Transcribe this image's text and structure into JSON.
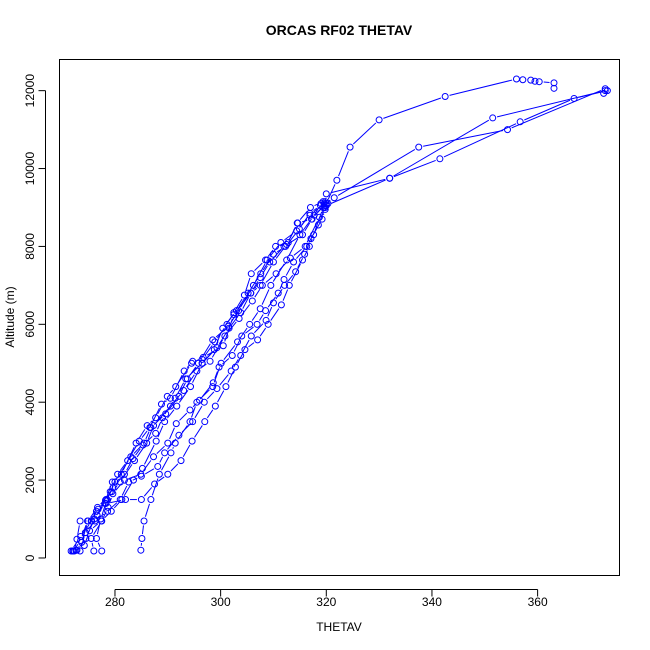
{
  "chart_data": {
    "type": "line",
    "title": "ORCAS RF02 THETAV",
    "xlabel": "THETAV",
    "ylabel": "Altitude (m)",
    "xlim": [
      269.5,
      375.5
    ],
    "ylim": [
      -450,
      12800
    ],
    "xticks": [
      280,
      300,
      320,
      340,
      360
    ],
    "yticks": [
      0,
      2000,
      4000,
      6000,
      8000,
      10000,
      12000
    ],
    "xtick_labels": [
      "280",
      "300",
      "320",
      "340",
      "360"
    ],
    "ytick_labels": [
      "0",
      "2000",
      "4000",
      "6000",
      "8000",
      "10000",
      "12000"
    ],
    "marker": "open-circle",
    "line_style": "solid-with-gaps-at-markers",
    "color": "#0000FF",
    "series": [
      {
        "points": [
          [
            284.9,
            200
          ],
          [
            285.1,
            500
          ],
          [
            285.5,
            950
          ],
          [
            286.8,
            1500
          ],
          [
            288.4,
            2150
          ],
          [
            290.6,
            2700
          ],
          [
            291.4,
            2950
          ],
          [
            294.2,
            3500
          ],
          [
            295.5,
            4000
          ],
          [
            298.5,
            4400
          ],
          [
            300.1,
            5000
          ],
          [
            303.2,
            5550
          ],
          [
            305.5,
            6000
          ],
          [
            307.5,
            6400
          ],
          [
            309.5,
            7000
          ],
          [
            312.5,
            7650
          ],
          [
            315.0,
            8300
          ],
          [
            317.7,
            8800
          ],
          [
            320.0,
            9100
          ],
          [
            322.0,
            9700
          ],
          [
            324.5,
            10550
          ],
          [
            330.0,
            11250
          ],
          [
            342.5,
            11850
          ],
          [
            356.0,
            12300
          ],
          [
            357.2,
            12280
          ],
          [
            358.7,
            12270
          ],
          [
            359.5,
            12240
          ],
          [
            360.3,
            12230
          ],
          [
            363.1,
            12200
          ],
          [
            363.1,
            12060
          ]
        ]
      },
      {
        "points": [
          [
            272.3,
            180
          ],
          [
            272.8,
            480
          ],
          [
            273.4,
            950
          ],
          [
            275.5,
            950
          ],
          [
            276.8,
            1250
          ],
          [
            278.2,
            1480
          ],
          [
            279.5,
            1950
          ],
          [
            281.2,
            2150
          ],
          [
            284.0,
            2950
          ],
          [
            286.1,
            3400
          ],
          [
            287.7,
            3600
          ],
          [
            289.9,
            4150
          ],
          [
            291.5,
            4400
          ],
          [
            294.5,
            5000
          ],
          [
            296.7,
            5150
          ],
          [
            300.5,
            5450
          ],
          [
            302.5,
            6250
          ],
          [
            305.7,
            6800
          ],
          [
            307.5,
            7000
          ],
          [
            310.0,
            7600
          ],
          [
            312.5,
            8050
          ],
          [
            314.6,
            8600
          ],
          [
            317.2,
            8700
          ],
          [
            319.6,
            9050
          ],
          [
            320.0,
            9350
          ],
          [
            332.0,
            9750
          ],
          [
            351.5,
            11300
          ],
          [
            372.8,
            12000
          ],
          [
            372.5,
            11930
          ]
        ]
      },
      {
        "points": [
          [
            277.5,
            180
          ],
          [
            276.5,
            500
          ],
          [
            277.3,
            1000
          ],
          [
            278.5,
            1500
          ],
          [
            280.0,
            1950
          ],
          [
            283.0,
            2600
          ],
          [
            285.5,
            2950
          ],
          [
            286.8,
            3350
          ],
          [
            289.6,
            3700
          ],
          [
            292.1,
            4150
          ],
          [
            293.7,
            4600
          ],
          [
            295.8,
            5000
          ],
          [
            298.5,
            5600
          ],
          [
            301.5,
            5950
          ],
          [
            303.4,
            6350
          ],
          [
            306.2,
            7000
          ],
          [
            308.8,
            7650
          ],
          [
            311.4,
            8100
          ],
          [
            314.4,
            8400
          ],
          [
            316.9,
            8800
          ],
          [
            319.6,
            9100
          ],
          [
            321.5,
            9250
          ],
          [
            337.5,
            10550
          ],
          [
            354.3,
            11000
          ],
          [
            372.8,
            12050
          ]
        ]
      },
      {
        "points": [
          [
            272.6,
            200
          ],
          [
            273.7,
            400
          ],
          [
            274.9,
            950
          ],
          [
            276.7,
            1300
          ],
          [
            279.4,
            1700
          ],
          [
            281.0,
            1950
          ],
          [
            283.7,
            2500
          ],
          [
            286.0,
            2950
          ],
          [
            287.3,
            3400
          ],
          [
            290.5,
            3900
          ],
          [
            293.0,
            4300
          ],
          [
            295.5,
            4800
          ],
          [
            298.0,
            5050
          ],
          [
            300.8,
            5700
          ],
          [
            303.5,
            6150
          ],
          [
            306.0,
            6600
          ],
          [
            307.9,
            7000
          ],
          [
            310.5,
            7300
          ],
          [
            313.2,
            7700
          ],
          [
            316.0,
            8000
          ],
          [
            318.7,
            8750
          ],
          [
            320.0,
            9050
          ],
          [
            332.0,
            9750
          ],
          [
            341.5,
            10250
          ],
          [
            356.7,
            11200
          ],
          [
            366.9,
            11800
          ],
          [
            373.2,
            12000
          ]
        ]
      },
      {
        "points": [
          [
            271.7,
            180
          ],
          [
            273.5,
            550
          ],
          [
            275.6,
            950
          ],
          [
            276.5,
            1200
          ],
          [
            278.3,
            1400
          ],
          [
            282.0,
            1500
          ],
          [
            285.0,
            1500
          ],
          [
            287.5,
            1900
          ],
          [
            290.0,
            2150
          ],
          [
            292.5,
            2500
          ],
          [
            294.6,
            3000
          ],
          [
            297.0,
            3500
          ],
          [
            299.0,
            3900
          ],
          [
            301.0,
            4400
          ],
          [
            302.8,
            4900
          ],
          [
            304.6,
            5350
          ],
          [
            307.0,
            5600
          ],
          [
            309.0,
            6000
          ],
          [
            311.5,
            6500
          ],
          [
            313.0,
            7000
          ],
          [
            315.5,
            7650
          ],
          [
            316.8,
            8000
          ],
          [
            317.6,
            8300
          ],
          [
            319.4,
            9000
          ],
          [
            319.8,
            9150
          ]
        ]
      },
      {
        "points": [
          [
            272.0,
            180
          ],
          [
            274.2,
            320
          ],
          [
            275.2,
            700
          ],
          [
            277.4,
            950
          ],
          [
            279.3,
            1200
          ],
          [
            281.3,
            1500
          ],
          [
            283.5,
            2000
          ],
          [
            285.2,
            2300
          ],
          [
            287.8,
            3000
          ],
          [
            289.4,
            3500
          ],
          [
            291.7,
            3900
          ],
          [
            294.3,
            4400
          ],
          [
            296.5,
            5000
          ],
          [
            299.3,
            5400
          ],
          [
            301.6,
            5900
          ],
          [
            303.8,
            6300
          ],
          [
            305.7,
            6800
          ],
          [
            307.5,
            7200
          ],
          [
            309.3,
            7600
          ],
          [
            312.0,
            8000
          ],
          [
            315.5,
            8300
          ],
          [
            317.3,
            8700
          ],
          [
            319.0,
            9100
          ],
          [
            320.3,
            9100
          ]
        ]
      },
      {
        "points": [
          [
            272.8,
            200
          ],
          [
            274.5,
            500
          ],
          [
            276.1,
            1000
          ],
          [
            278.3,
            1500
          ],
          [
            279.1,
            1700
          ],
          [
            280.5,
            2150
          ],
          [
            282.4,
            2500
          ],
          [
            284.6,
            3000
          ],
          [
            286.6,
            3350
          ],
          [
            288.8,
            3950
          ],
          [
            290.5,
            4100
          ],
          [
            293.1,
            4800
          ],
          [
            294.7,
            5050
          ],
          [
            296.5,
            5100
          ],
          [
            298.9,
            5550
          ],
          [
            301.2,
            6000
          ],
          [
            302.5,
            6300
          ],
          [
            304.5,
            6750
          ],
          [
            305.8,
            7300
          ],
          [
            308.5,
            7650
          ],
          [
            310.4,
            8000
          ],
          [
            312.8,
            8100
          ],
          [
            314.5,
            8600
          ],
          [
            317.0,
            9000
          ],
          [
            319.4,
            9150
          ]
        ]
      },
      {
        "points": [
          [
            276.0,
            180
          ],
          [
            275.5,
            500
          ],
          [
            277.5,
            950
          ],
          [
            278.7,
            1300
          ],
          [
            279.6,
            1650
          ],
          [
            281.8,
            2000
          ],
          [
            284.9,
            2150
          ],
          [
            287.3,
            2600
          ],
          [
            290.0,
            2950
          ],
          [
            291.6,
            3450
          ],
          [
            294.2,
            3800
          ],
          [
            296.0,
            4050
          ],
          [
            298.6,
            4500
          ],
          [
            299.7,
            4900
          ],
          [
            302.2,
            5200
          ],
          [
            304.0,
            5700
          ],
          [
            306.9,
            6000
          ],
          [
            308.5,
            6350
          ],
          [
            310.9,
            6800
          ],
          [
            312.0,
            7150
          ],
          [
            313.8,
            7600
          ],
          [
            316.3,
            8000
          ],
          [
            318.5,
            8550
          ],
          [
            319.8,
            9000
          ],
          [
            320.0,
            9100
          ]
        ]
      },
      {
        "points": [
          [
            273.4,
            180
          ],
          [
            274.4,
            650
          ],
          [
            276.2,
            950
          ],
          [
            278.6,
            1200
          ],
          [
            281.0,
            1500
          ],
          [
            282.6,
            1950
          ],
          [
            285.0,
            2100
          ],
          [
            288.1,
            2350
          ],
          [
            289.4,
            2700
          ],
          [
            292.1,
            3150
          ],
          [
            294.7,
            3500
          ],
          [
            296.9,
            4000
          ],
          [
            299.3,
            4350
          ],
          [
            302.0,
            4800
          ],
          [
            303.8,
            5200
          ],
          [
            305.8,
            5700
          ],
          [
            308.6,
            6100
          ],
          [
            310.0,
            6550
          ],
          [
            312.1,
            7000
          ],
          [
            314.2,
            7350
          ],
          [
            315.9,
            7800
          ],
          [
            317.1,
            8200
          ],
          [
            319.2,
            8700
          ],
          [
            319.8,
            8950
          ],
          [
            320.0,
            9050
          ]
        ]
      },
      {
        "points": [
          [
            272.1,
            180
          ],
          [
            273.5,
            450
          ],
          [
            274.8,
            950
          ],
          [
            276.6,
            1100
          ],
          [
            278.1,
            1400
          ],
          [
            279.6,
            1800
          ],
          [
            281.8,
            2150
          ],
          [
            283.4,
            2550
          ],
          [
            285.3,
            2900
          ],
          [
            287.7,
            3200
          ],
          [
            289.0,
            3600
          ],
          [
            291.4,
            4100
          ],
          [
            293.4,
            4600
          ],
          [
            296.5,
            5000
          ],
          [
            298.8,
            5350
          ],
          [
            300.4,
            5900
          ],
          [
            303.0,
            6350
          ],
          [
            305.2,
            6800
          ],
          [
            307.6,
            7300
          ],
          [
            310.0,
            7800
          ],
          [
            312.3,
            8000
          ],
          [
            314.9,
            8450
          ],
          [
            316.9,
            8850
          ],
          [
            318.9,
            9050
          ],
          [
            319.7,
            9000
          ]
        ]
      }
    ]
  }
}
